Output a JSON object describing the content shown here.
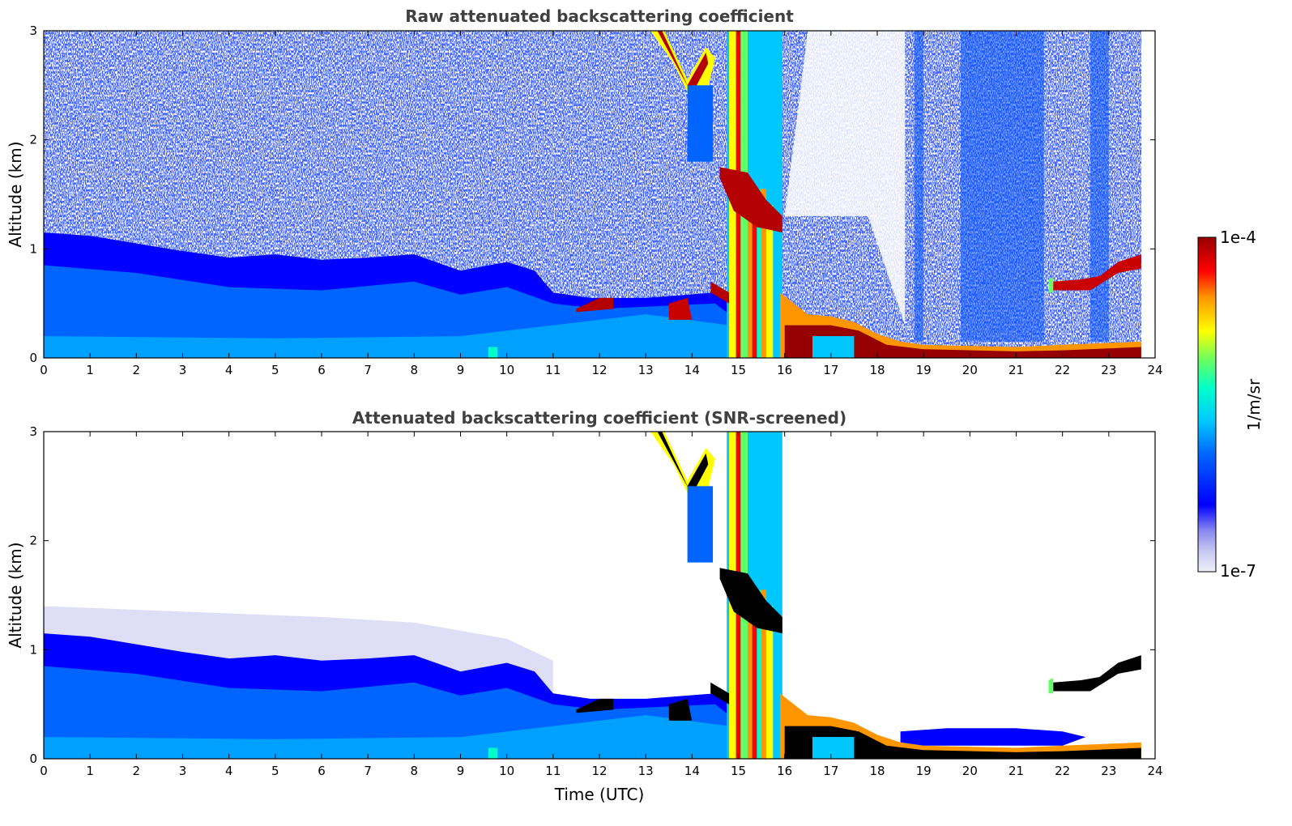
{
  "chart_data": [
    {
      "type": "heatmap",
      "title": "Raw attenuated backscattering coefficient",
      "xlabel": "",
      "ylabel": "Altitude (km)",
      "xlim": [
        0,
        24
      ],
      "ylim": [
        0,
        3
      ],
      "xticks": [
        "0",
        "1",
        "2",
        "3",
        "4",
        "5",
        "6",
        "7",
        "8",
        "9",
        "10",
        "11",
        "12",
        "13",
        "14",
        "15",
        "16",
        "17",
        "18",
        "19",
        "20",
        "21",
        "22",
        "23",
        "24"
      ],
      "yticks": [
        "0",
        "1",
        "2",
        "3"
      ],
      "data_end_hour": 23.7,
      "layers": [
        {
          "feature": "boundary layer aerosol top",
          "t": [
            0,
            2,
            4,
            6,
            8,
            10,
            11
          ],
          "alt_km": [
            1.15,
            1.05,
            0.95,
            0.9,
            0.95,
            0.85,
            0.6
          ]
        },
        {
          "feature": "low cloud layer",
          "t": [
            11.5,
            12.0,
            12.3
          ],
          "alt_km": [
            0.45,
            0.5,
            0.5
          ]
        },
        {
          "feature": "descending cloud layer",
          "t": [
            13.2,
            13.8,
            14.3,
            14.6
          ],
          "alt_km": [
            2.9,
            2.5,
            2.7,
            2.8
          ]
        },
        {
          "feature": "precipitation columns",
          "t": [
            14.8,
            15.5
          ],
          "alt_km": [
            0,
            3
          ]
        },
        {
          "feature": "surface fog / stable layer",
          "t": [
            16,
            18,
            20,
            22,
            23.7
          ],
          "alt_km": [
            0.3,
            0.15,
            0.08,
            0.08,
            0.1
          ]
        },
        {
          "feature": "elevated cloud layer",
          "t": [
            21.8,
            22.5,
            23.0,
            23.7
          ],
          "alt_km": [
            0.65,
            0.65,
            0.8,
            0.9
          ]
        }
      ]
    },
    {
      "type": "heatmap",
      "title": "Attenuated backscattering coefficient (SNR-screened)",
      "xlabel": "Time (UTC)",
      "ylabel": "Altitude (km)",
      "xlim": [
        0,
        24
      ],
      "ylim": [
        0,
        3
      ],
      "xticks": [
        "0",
        "1",
        "2",
        "3",
        "4",
        "5",
        "6",
        "7",
        "8",
        "9",
        "10",
        "11",
        "12",
        "13",
        "14",
        "15",
        "16",
        "17",
        "18",
        "19",
        "20",
        "21",
        "22",
        "23",
        "24"
      ],
      "yticks": [
        "0",
        "1",
        "2",
        "3"
      ],
      "data_end_hour": 23.7
    }
  ],
  "colorbar": {
    "max_label": "1e-4",
    "min_label": "1e-7",
    "unit_label": "1/m/sr",
    "colors": [
      "#f0f0fa",
      "#c8c8f0",
      "#8c8cf0",
      "#0000ff",
      "#0064ff",
      "#00c8ff",
      "#00ffc8",
      "#64ff64",
      "#ffff00",
      "#ff9600",
      "#ff0000",
      "#960000"
    ]
  }
}
